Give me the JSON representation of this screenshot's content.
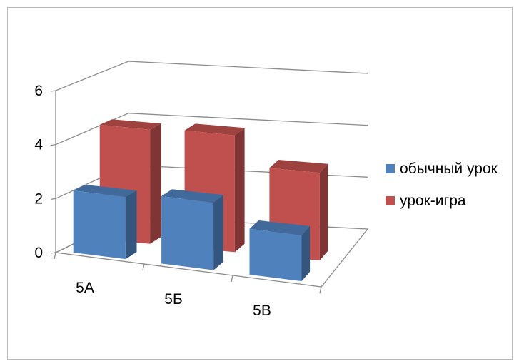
{
  "chart_data": {
    "type": "bar",
    "title": "",
    "xlabel": "",
    "ylabel": "",
    "categories": [
      "5А",
      "5Б",
      "5В"
    ],
    "series": [
      {
        "name": "обычный урок",
        "values": [
          2.3,
          2.5,
          1.7
        ],
        "color": "#4f81bd"
      },
      {
        "name": "урок-игра",
        "values": [
          4.3,
          4.4,
          3.3
        ],
        "color": "#c0504d"
      }
    ],
    "ylim": [
      0,
      6
    ],
    "yticks": [
      0,
      2,
      4,
      6
    ],
    "grid": true,
    "legend": "right",
    "view": "3d-clustered-column"
  }
}
